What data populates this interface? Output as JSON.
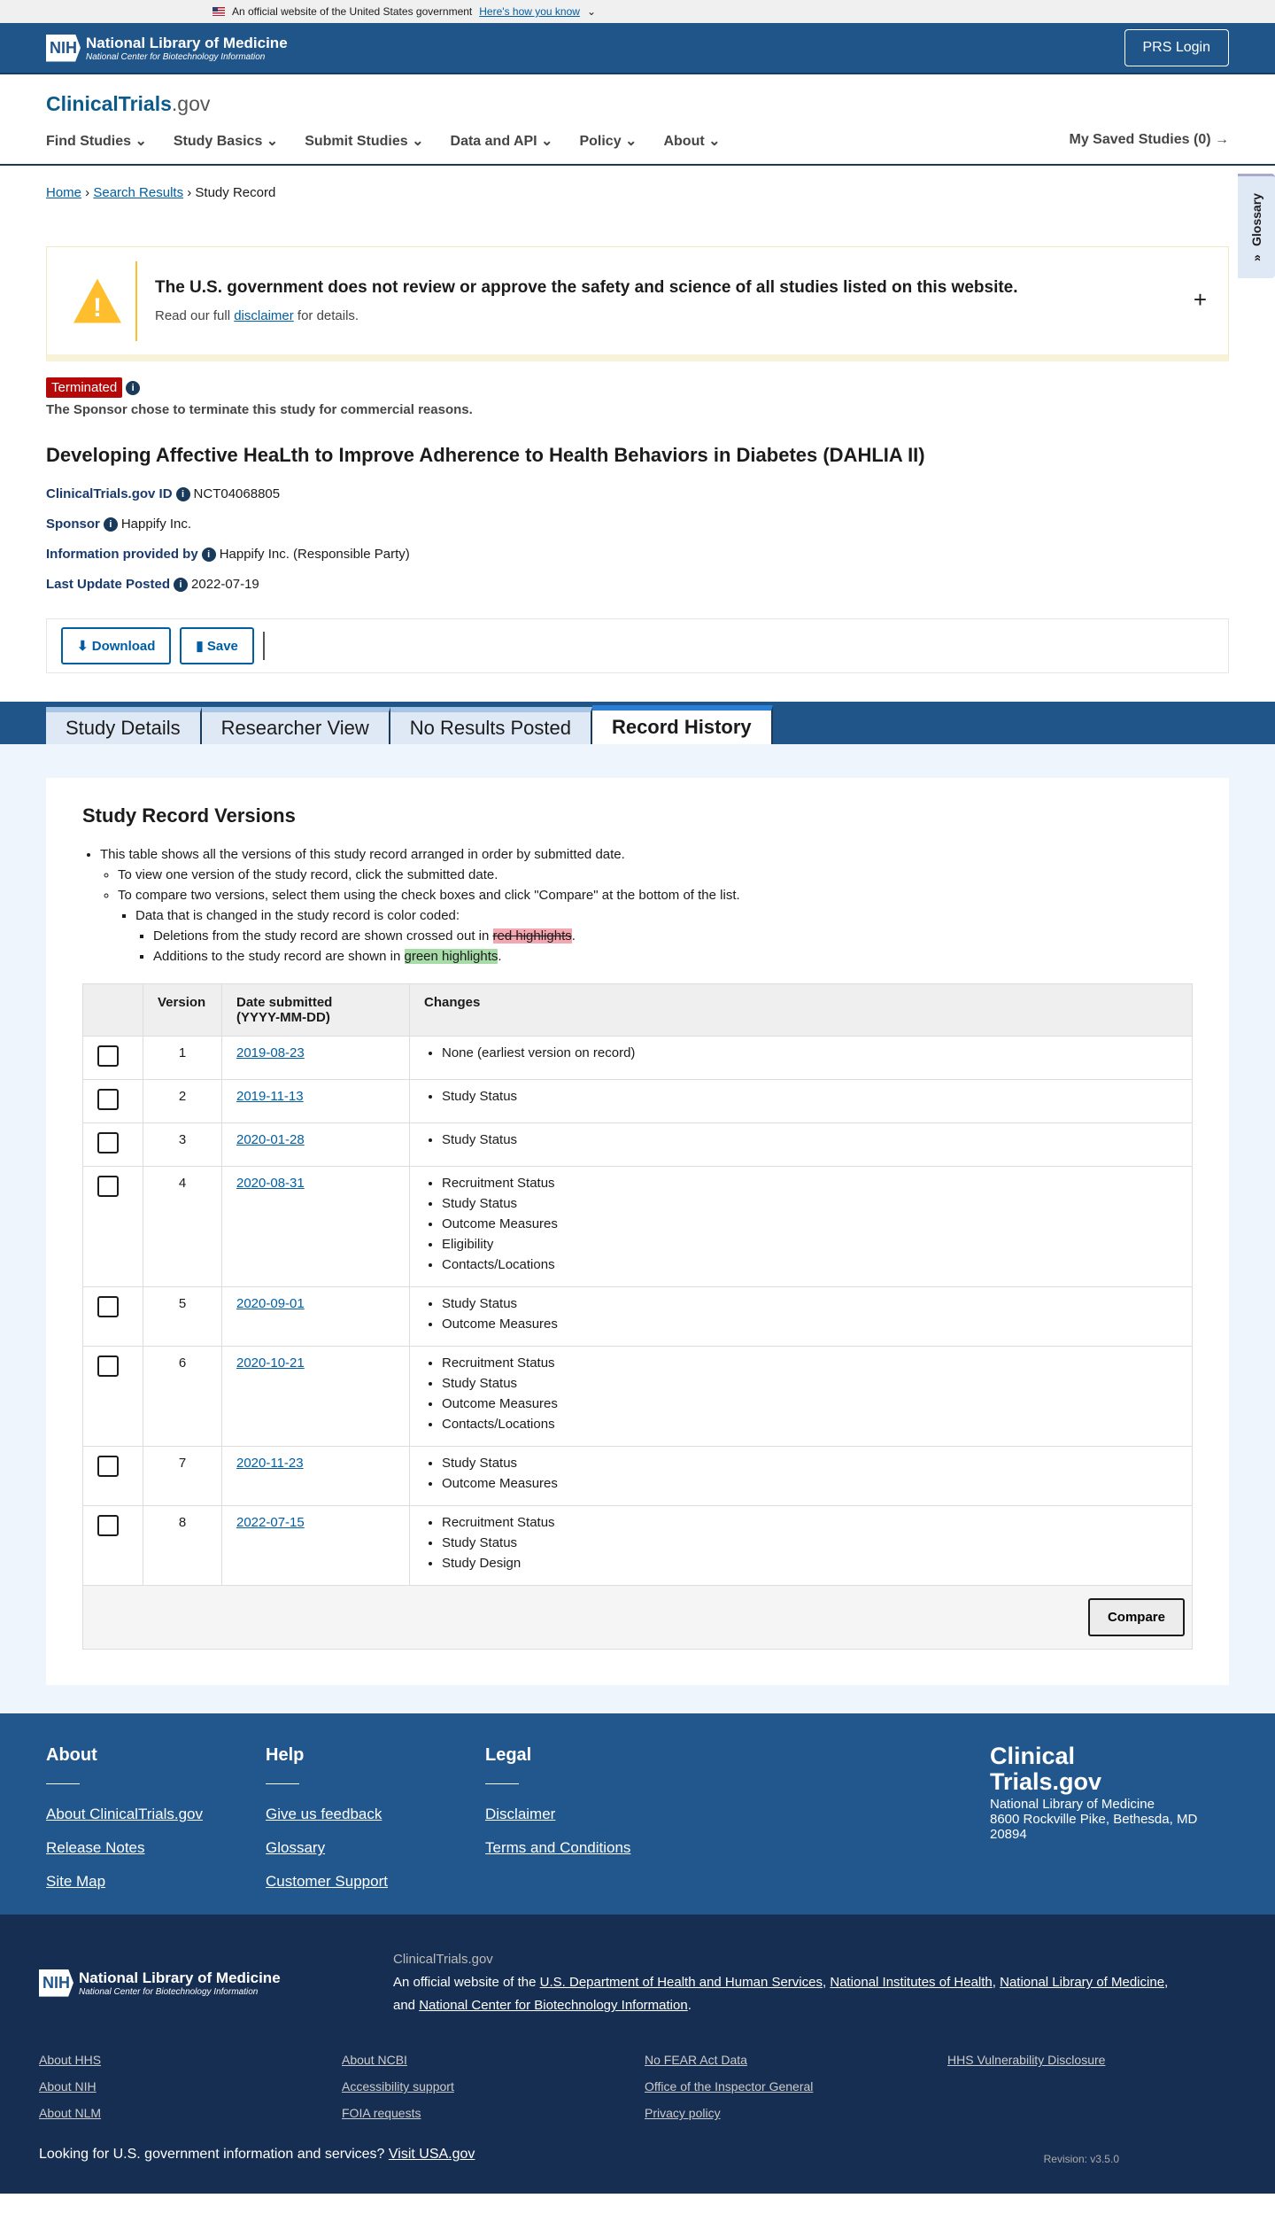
{
  "gov_banner": {
    "text": "An official website of the United States government",
    "link": "Here's how you know"
  },
  "nih": {
    "title": "National Library of Medicine",
    "subtitle": "National Center for Biotechnology Information",
    "logo": "NIH"
  },
  "prs_login": "PRS Login",
  "site": {
    "logo_main": "ClinicalTrials",
    "logo_suffix": ".gov"
  },
  "nav": [
    "Find Studies",
    "Study Basics",
    "Submit Studies",
    "Data and API",
    "Policy",
    "About"
  ],
  "saved": "My Saved Studies (0)",
  "breadcrumb": [
    "Home",
    "Search Results",
    "Study Record"
  ],
  "glossary": "Glossary",
  "disclaimer": {
    "title": "The U.S. government does not review or approve the safety and science of all studies listed on this website.",
    "pre": "Read our full ",
    "link": "disclaimer",
    "post": " for details."
  },
  "status": {
    "badge": "Terminated",
    "reason": "The Sponsor chose to terminate this study for commercial reasons.",
    "color": "#b50909"
  },
  "title": "Developing Affective HeaLth to Improve Adherence to Health Behaviors in Diabetes (DAHLIA II)",
  "meta": [
    {
      "label": "ClinicalTrials.gov ID",
      "value": "NCT04068805"
    },
    {
      "label": "Sponsor",
      "value": "Happify Inc."
    },
    {
      "label": "Information provided by",
      "value": "Happify Inc. (Responsible Party)"
    },
    {
      "label": "Last Update Posted",
      "value": "2022-07-19"
    }
  ],
  "actions": {
    "download": "Download",
    "save": "Save"
  },
  "tabs": [
    "Study Details",
    "Researcher View",
    "No Results Posted",
    "Record History"
  ],
  "versions": {
    "heading": "Study Record Versions",
    "intro": "This table shows all the versions of this study record arranged in order by submitted date.",
    "view": "To view one version of the study record, click the submitted date.",
    "compare_hint": "To compare two versions, select them using the check boxes and click \"Compare\" at the bottom of the list.",
    "color_coded": "Data that is changed in the study record is color coded:",
    "del_pre": "Deletions from the study record are shown crossed out in ",
    "del_hl": "red highlights",
    "add_pre": "Additions to the study record are shown in ",
    "add_hl": "green highlights",
    "columns": [
      "Version",
      "Date submitted",
      "(YYYY-MM-DD)",
      "Changes"
    ],
    "rows": [
      {
        "v": "1",
        "date": "2019-08-23",
        "changes": [
          "None (earliest version on record)"
        ]
      },
      {
        "v": "2",
        "date": "2019-11-13",
        "changes": [
          "Study Status"
        ]
      },
      {
        "v": "3",
        "date": "2020-01-28",
        "changes": [
          "Study Status"
        ]
      },
      {
        "v": "4",
        "date": "2020-08-31",
        "changes": [
          "Recruitment Status",
          "Study Status",
          "Outcome Measures",
          "Eligibility",
          "Contacts/Locations"
        ]
      },
      {
        "v": "5",
        "date": "2020-09-01",
        "changes": [
          "Study Status",
          "Outcome Measures"
        ]
      },
      {
        "v": "6",
        "date": "2020-10-21",
        "changes": [
          "Recruitment Status",
          "Study Status",
          "Outcome Measures",
          "Contacts/Locations"
        ]
      },
      {
        "v": "7",
        "date": "2020-11-23",
        "changes": [
          "Study Status",
          "Outcome Measures"
        ]
      },
      {
        "v": "8",
        "date": "2022-07-15",
        "changes": [
          "Recruitment Status",
          "Study Status",
          "Study Design"
        ]
      }
    ],
    "compare": "Compare"
  },
  "footer": {
    "cols": [
      {
        "title": "About",
        "links": [
          "About ClinicalTrials.gov",
          "Release Notes",
          "Site Map"
        ]
      },
      {
        "title": "Help",
        "links": [
          "Give us feedback",
          "Glossary",
          "Customer Support"
        ]
      },
      {
        "title": "Legal",
        "links": [
          "Disclaimer",
          "Terms and Conditions"
        ]
      }
    ],
    "logo1": "Clinical",
    "logo2": "Trials.gov",
    "address": [
      "National Library of Medicine",
      "8600 Rockville Pike, Bethesda, MD 20894"
    ],
    "site_name": "ClinicalTrials.gov",
    "official_pre": "An official website of the ",
    "official_links": [
      "U.S. Department of Health and Human Services",
      "National Institutes of Health",
      "National Library of Medicine",
      "National Center for Biotechnology Information"
    ],
    "links": [
      "About HHS",
      "About NCBI",
      "No FEAR Act Data",
      "HHS Vulnerability Disclosure",
      "About NIH",
      "Accessibility support",
      "Office of the Inspector General",
      "",
      "About NLM",
      "FOIA requests",
      "Privacy policy",
      ""
    ],
    "usa_text": "Looking for U.S. government information and services?",
    "usa_link": "Visit USA.gov",
    "revision": "Revision: v3.5.0"
  }
}
